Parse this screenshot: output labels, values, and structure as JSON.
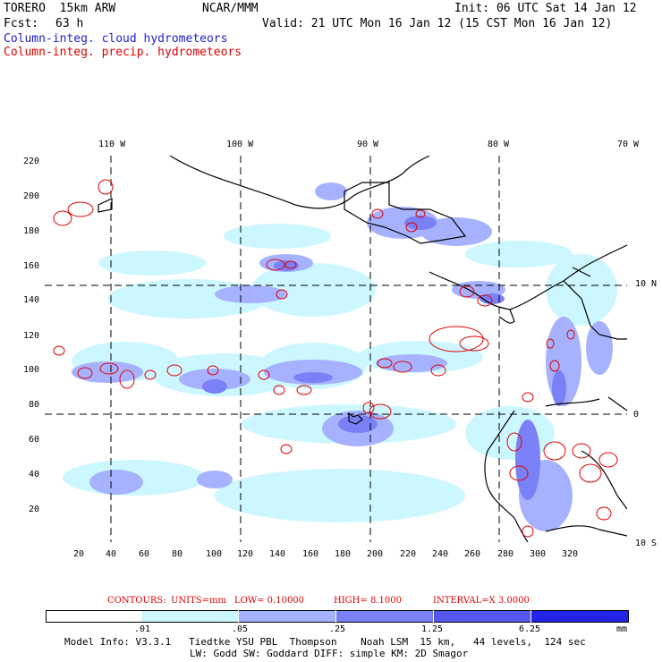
{
  "header": {
    "model": "TORERO  15km ARW",
    "org": "NCAR/MMM",
    "init": "Init: 06 UTC Sat 14 Jan 12",
    "fcst_label": "Fcst:",
    "fcst_hours": "63 h",
    "valid": "Valid: 21 UTC Mon 16 Jan 12 (15 CST Mon 16 Jan 12)",
    "field1": "Column-integ. cloud hydrometeors",
    "field2": "Column-integ. precip. hydrometeors"
  },
  "map": {
    "lon_labels": [
      "110 W",
      "100 W",
      "90 W",
      "80 W",
      "70 W"
    ],
    "lat_labels": [
      "10 N",
      "0",
      "10 S"
    ],
    "y_ticks": [
      "220",
      "200",
      "180",
      "160",
      "140",
      "120",
      "100",
      "80",
      "60",
      "40",
      "20"
    ],
    "x_ticks": [
      "20",
      "40",
      "60",
      "80",
      "100",
      "120",
      "140",
      "160",
      "180",
      "200",
      "220",
      "240",
      "260",
      "280",
      "300",
      "320"
    ],
    "land_color": "#000000",
    "cloud_color": "#8080ff",
    "precip_contour_color": "#e00000"
  },
  "contours": {
    "label": "CONTOURS:",
    "units": "UNITS=mm",
    "low": "LOW= 0.10000",
    "high": "HIGH= 8.1000",
    "interval": "INTERVAL=X 3.0000"
  },
  "colorbar": {
    "levels": [
      ".01",
      ".05",
      ".25",
      "1.25",
      "6.25"
    ],
    "unit": "mm",
    "colors": [
      "#ffffff",
      "#ccf7ff",
      "#a6b2ff",
      "#7a80f5",
      "#5557ef",
      "#2424e6"
    ]
  },
  "footer": {
    "line1": "Model Info: V3.3.1   Tiedtke YSU PBL  Thompson    Noah LSM  15 km,   44 levels,  124 sec",
    "line2": "LW: Godd SW: Goddard DIFF: simple KM: 2D Smagor"
  }
}
